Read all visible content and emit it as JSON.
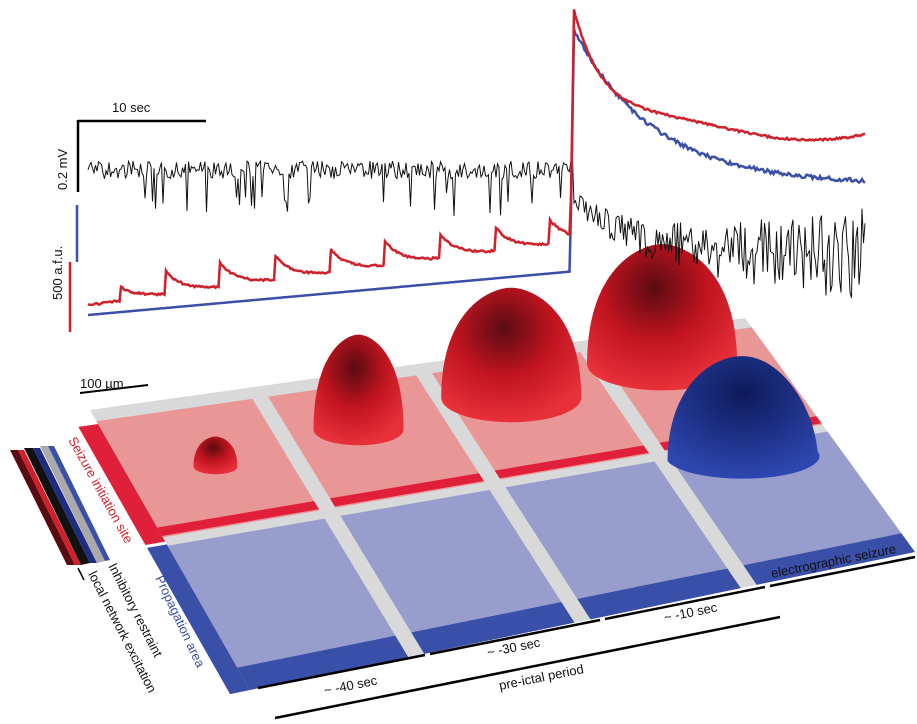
{
  "scale_bars": {
    "time": "10 sec",
    "voltage": "0.2 mV",
    "fluorescence": "500 a.f.u.",
    "space": "100 µm"
  },
  "regions": {
    "initiation": "Seizure initiation site",
    "propagation": "Propagation area"
  },
  "legend": {
    "inhibitory": "Inhibitory restraint",
    "excitation": "local network excitation"
  },
  "timeline": {
    "minus40": "~ -40 sec",
    "minus30": "~ -30 sec",
    "minus10": "~ -10 sec",
    "seizure": "electrographic seizure",
    "preictal": "pre-ictal period"
  }
}
